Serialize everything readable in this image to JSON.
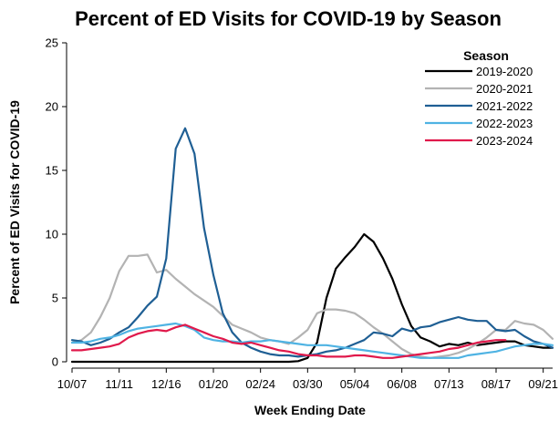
{
  "chart_data": {
    "type": "line",
    "title": "Percent of ED Visits for COVID-19 by Season",
    "xlabel": "Week Ending Date",
    "ylabel": "Percent of ED Visits for COVID-19",
    "ylim": [
      0,
      25
    ],
    "yticks": [
      0,
      5,
      10,
      15,
      20,
      25
    ],
    "xticks": [
      {
        "week": 0,
        "label": "10/07"
      },
      {
        "week": 5,
        "label": "11/11"
      },
      {
        "week": 10,
        "label": "12/16"
      },
      {
        "week": 15,
        "label": "01/20"
      },
      {
        "week": 20,
        "label": "02/24"
      },
      {
        "week": 25,
        "label": "03/30"
      },
      {
        "week": 30,
        "label": "05/04"
      },
      {
        "week": 35,
        "label": "06/08"
      },
      {
        "week": 40,
        "label": "07/13"
      },
      {
        "week": 45,
        "label": "08/17"
      },
      {
        "week": 50,
        "label": "09/21"
      }
    ],
    "xlim": [
      0,
      51
    ],
    "legend": {
      "title": "Season",
      "position": "top-right"
    },
    "grid": false,
    "series": [
      {
        "name": "2019-2020",
        "color": "#000000",
        "values": [
          0,
          0,
          0,
          0,
          0,
          0,
          0,
          0,
          0,
          0,
          0,
          0,
          0,
          0,
          0,
          0,
          0,
          0,
          0,
          0,
          0,
          0,
          0,
          0,
          0.05,
          0.3,
          1.5,
          5,
          7.3,
          8.2,
          9,
          10,
          9.4,
          8.1,
          6.5,
          4.5,
          2.8,
          1.9,
          1.6,
          1.2,
          1.4,
          1.3,
          1.5,
          1.3,
          1.4,
          1.5,
          1.6,
          1.6,
          1.3,
          1.2,
          1.1,
          1.1
        ]
      },
      {
        "name": "2020-2021",
        "color": "#b3b3b3",
        "values": [
          1.5,
          1.7,
          2.3,
          3.5,
          5,
          7.1,
          8.3,
          8.3,
          8.4,
          7,
          7.2,
          6.5,
          5.9,
          5.3,
          4.8,
          4.3,
          3.6,
          2.9,
          2.6,
          2.3,
          1.9,
          1.7,
          1.6,
          1.4,
          1.9,
          2.5,
          3.8,
          4.1,
          4.1,
          4,
          3.8,
          3.3,
          2.7,
          2.2,
          1.6,
          1.0,
          0.6,
          0.4,
          0.3,
          0.4,
          0.5,
          0.7,
          1.0,
          1.4,
          1.9,
          2.5,
          2.5,
          3.2,
          3.0,
          2.9,
          2.5,
          1.8
        ]
      },
      {
        "name": "2021-2022",
        "color": "#1f5f94",
        "values": [
          1.7,
          1.6,
          1.3,
          1.5,
          1.8,
          2.3,
          2.7,
          3.5,
          4.4,
          5.1,
          8.1,
          16.7,
          18.3,
          16.3,
          10.5,
          6.8,
          3.8,
          2.3,
          1.5,
          1.1,
          0.8,
          0.6,
          0.5,
          0.5,
          0.4,
          0.5,
          0.6,
          0.8,
          0.9,
          1.1,
          1.4,
          1.7,
          2.3,
          2.2,
          2.0,
          2.6,
          2.4,
          2.7,
          2.8,
          3.1,
          3.3,
          3.5,
          3.3,
          3.2,
          3.2,
          2.5,
          2.4,
          2.5,
          2.0,
          1.6,
          1.4,
          1.1
        ]
      },
      {
        "name": "2022-2023",
        "color": "#4fb3e3",
        "values": [
          1.5,
          1.5,
          1.6,
          1.8,
          1.9,
          2.1,
          2.4,
          2.6,
          2.7,
          2.8,
          2.9,
          3.0,
          2.8,
          2.5,
          1.9,
          1.7,
          1.6,
          1.6,
          1.5,
          1.6,
          1.6,
          1.7,
          1.6,
          1.5,
          1.4,
          1.3,
          1.3,
          1.3,
          1.2,
          1.1,
          1.0,
          0.9,
          0.8,
          0.7,
          0.6,
          0.5,
          0.4,
          0.3,
          0.3,
          0.3,
          0.3,
          0.3,
          0.5,
          0.6,
          0.7,
          0.8,
          1.0,
          1.2,
          1.3,
          1.4,
          1.4,
          1.3
        ]
      },
      {
        "name": "2023-2024",
        "color": "#e0194b",
        "values": [
          0.9,
          0.9,
          1.0,
          1.1,
          1.2,
          1.4,
          1.9,
          2.2,
          2.4,
          2.5,
          2.4,
          2.7,
          2.9,
          2.6,
          2.3,
          2.0,
          1.8,
          1.5,
          1.4,
          1.5,
          1.3,
          1.1,
          0.9,
          0.8,
          0.6,
          0.5,
          0.5,
          0.4,
          0.4,
          0.4,
          0.5,
          0.5,
          0.4,
          0.3,
          0.3,
          0.4,
          0.5,
          0.6,
          0.7,
          0.8,
          1.0,
          1.1,
          1.3,
          1.5,
          1.6,
          1.7,
          1.7
        ]
      }
    ]
  }
}
